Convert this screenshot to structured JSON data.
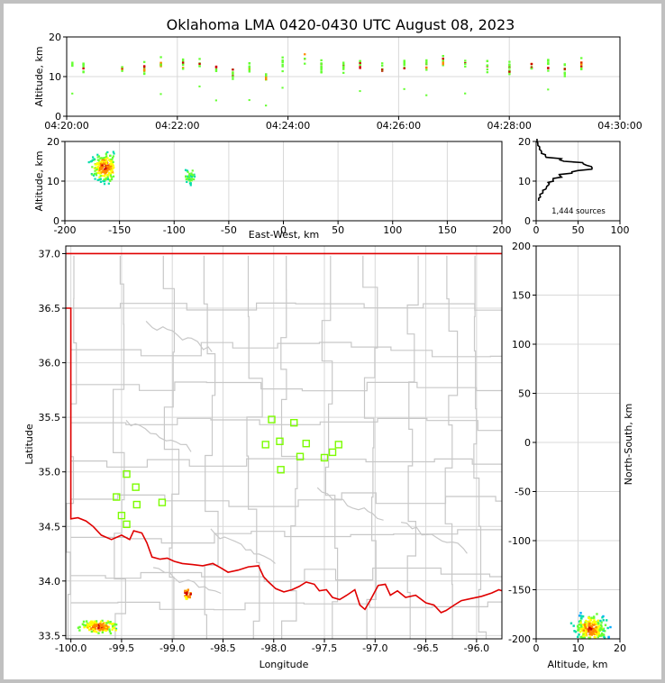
{
  "title": "Oklahoma LMA 0420-0430 UTC August 08, 2023",
  "colors": {
    "grid": "#d8d8d8",
    "state_line": "#e00000",
    "county_line": "#c8c8c8",
    "station": "#7cfc00",
    "density": [
      "#0000cc",
      "#00aaff",
      "#00ddaa",
      "#66ff33",
      "#ffff00",
      "#ff8800",
      "#cc0000"
    ]
  },
  "panels": {
    "time_height": {
      "ylabel": "Altitude, km",
      "yticks": [
        "0",
        "10",
        "20"
      ],
      "xticks": [
        "04:20:00",
        "04:22:00",
        "04:24:00",
        "04:26:00",
        "04:28:00",
        "04:30:00"
      ]
    },
    "ew_height": {
      "ylabel": "Altitude, km",
      "xlabel": "East-West, km",
      "yticks": [
        "0",
        "10",
        "20"
      ],
      "xticks": [
        "-200",
        "-150",
        "-100",
        "-50",
        "0",
        "50",
        "100",
        "150",
        "200"
      ]
    },
    "histogram": {
      "yticks": [
        "0",
        "10",
        "20"
      ],
      "xticks": [
        "0",
        "50",
        "100"
      ],
      "source_count": "1,444 sources"
    },
    "map": {
      "ylabel": "Latitude",
      "xlabel": "Longitude",
      "yticks": [
        "33.5",
        "34.0",
        "34.5",
        "35.0",
        "35.5",
        "36.0",
        "36.5",
        "37.0"
      ],
      "xticks": [
        "-100.0",
        "-99.5",
        "-99.0",
        "-98.5",
        "-98.0",
        "-97.5",
        "-97.0",
        "-96.5",
        "-96.0"
      ]
    },
    "ns_height": {
      "ylabel": "North-South, km",
      "xlabel": "Altitude, km",
      "yticks": [
        "200",
        "150",
        "100",
        "50",
        "0",
        "-50",
        "-100",
        "-150",
        "-200"
      ],
      "xticks": [
        "0",
        "10",
        "20"
      ]
    }
  },
  "chart_data": [
    {
      "type": "scatter",
      "name": "time-height",
      "xlabel": "",
      "ylabel": "Altitude, km",
      "xlim": [
        "04:20:00",
        "04:30:00"
      ],
      "ylim": [
        0,
        20
      ],
      "x_minutes_after_0420": [
        0.1,
        0.3,
        1.0,
        1.4,
        1.7,
        2.1,
        2.4,
        2.7,
        3.0,
        3.3,
        3.6,
        3.9,
        4.3,
        4.6,
        5.0,
        5.3,
        5.7,
        6.1,
        6.5,
        6.8,
        7.2,
        7.6,
        8.0,
        8.4,
        8.7,
        9.0,
        9.3
      ],
      "y_centers_km": [
        13,
        12,
        12,
        12,
        13,
        13,
        13,
        12,
        11,
        12,
        10,
        13,
        15,
        13,
        12,
        13,
        12,
        13,
        13,
        14,
        13,
        13,
        12,
        13,
        13,
        12,
        13
      ]
    },
    {
      "type": "heatmap",
      "name": "east-west vs altitude",
      "xlabel": "East-West, km",
      "ylabel": "Altitude, km",
      "xlim": [
        -200,
        200
      ],
      "ylim": [
        0,
        20
      ],
      "clusters": [
        {
          "x_range": [
            -190,
            -155
          ],
          "y_range": [
            6,
            20
          ],
          "peak_x": -163,
          "peak_y": 13.5
        },
        {
          "x_range": [
            -90,
            -78
          ],
          "y_range": [
            8,
            15
          ],
          "peak_x": -85,
          "peak_y": 11
        }
      ]
    },
    {
      "type": "line",
      "name": "altitude histogram",
      "xlim": [
        0,
        100
      ],
      "ylim": [
        0,
        20
      ],
      "altitude_km": [
        5,
        6,
        7,
        8,
        9,
        10,
        11,
        12,
        13,
        14,
        15,
        16,
        17,
        18,
        19,
        20
      ],
      "count": [
        3,
        5,
        8,
        12,
        15,
        20,
        28,
        45,
        65,
        58,
        30,
        12,
        6,
        4,
        2,
        1
      ]
    },
    {
      "type": "scatter",
      "name": "plan view",
      "xlabel": "Longitude",
      "ylabel": "Latitude",
      "xlim": [
        -100.05,
        -95.75
      ],
      "ylim": [
        33.47,
        37.07
      ],
      "sources": [
        {
          "lon_range": [
            -100.0,
            -99.55
          ],
          "lat_range": [
            33.47,
            33.65
          ],
          "peak_lon": -99.72,
          "peak_lat": 33.58
        },
        {
          "lon_range": [
            -98.88,
            -98.78
          ],
          "lat_range": [
            33.75,
            33.93
          ],
          "peak_lon": -98.85,
          "peak_lat": 33.88
        }
      ],
      "stations": [
        {
          "lon": -98.02,
          "lat": 35.48
        },
        {
          "lon": -97.8,
          "lat": 35.45
        },
        {
          "lon": -98.08,
          "lat": 35.25
        },
        {
          "lon": -97.94,
          "lat": 35.28
        },
        {
          "lon": -97.68,
          "lat": 35.26
        },
        {
          "lon": -97.36,
          "lat": 35.25
        },
        {
          "lon": -97.42,
          "lat": 35.18
        },
        {
          "lon": -97.74,
          "lat": 35.14
        },
        {
          "lon": -97.5,
          "lat": 35.13
        },
        {
          "lon": -97.93,
          "lat": 35.02
        },
        {
          "lon": -99.45,
          "lat": 34.98
        },
        {
          "lon": -99.36,
          "lat": 34.86
        },
        {
          "lon": -99.55,
          "lat": 34.77
        },
        {
          "lon": -99.1,
          "lat": 34.72
        },
        {
          "lon": -99.35,
          "lat": 34.7
        },
        {
          "lon": -99.5,
          "lat": 34.6
        },
        {
          "lon": -99.45,
          "lat": 34.52
        }
      ]
    },
    {
      "type": "heatmap",
      "name": "altitude vs north-south",
      "xlabel": "Altitude, km",
      "ylabel": "North-South, km",
      "xlim": [
        0,
        20
      ],
      "ylim": [
        -200,
        200
      ],
      "clusters": [
        {
          "x_range": [
            4,
            20
          ],
          "y_range": [
            -200,
            -150
          ],
          "peak_x": 13,
          "peak_y": -190
        }
      ]
    }
  ]
}
